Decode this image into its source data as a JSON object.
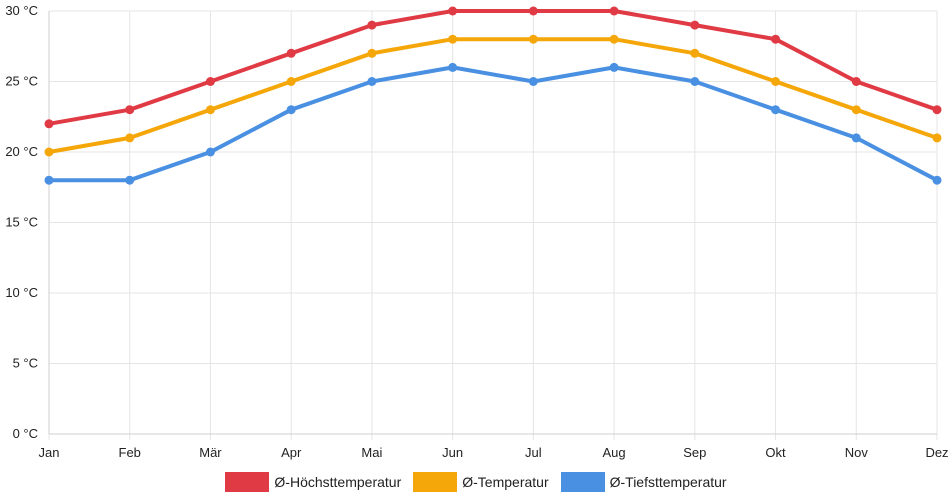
{
  "chart_data": {
    "type": "line",
    "categories": [
      "Jan",
      "Feb",
      "Mär",
      "Apr",
      "Mai",
      "Jun",
      "Jul",
      "Aug",
      "Sep",
      "Okt",
      "Nov",
      "Dez"
    ],
    "ylim": [
      0,
      30
    ],
    "yticks": [
      0,
      5,
      10,
      15,
      20,
      25,
      30
    ],
    "ytick_labels": [
      "0 °C",
      "5 °C",
      "10 °C",
      "15 °C",
      "20 °C",
      "25 °C",
      "30 °C"
    ],
    "grid": true,
    "legend_position": "bottom-center",
    "series": [
      {
        "name": "Ø-Höchsttemperatur",
        "color": "#e03a45",
        "values": [
          22,
          23,
          25,
          27,
          29,
          30,
          30,
          30,
          29,
          28,
          25,
          23
        ]
      },
      {
        "name": "Ø-Temperatur",
        "color": "#f5a70a",
        "values": [
          20,
          21,
          23,
          25,
          27,
          28,
          28,
          28,
          27,
          25,
          23,
          21
        ]
      },
      {
        "name": "Ø-Tiefsttemperatur",
        "color": "#4a90e2",
        "values": [
          18,
          18,
          20,
          23,
          25,
          26,
          25,
          26,
          25,
          23,
          21,
          18
        ]
      }
    ]
  }
}
